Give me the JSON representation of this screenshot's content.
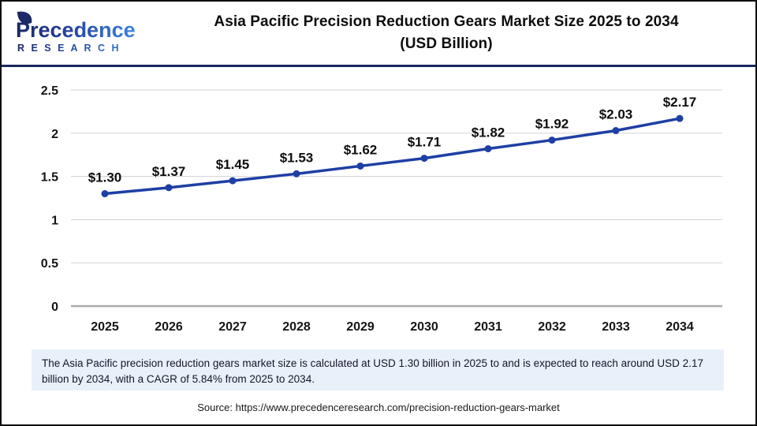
{
  "brand": {
    "name": "Precedence",
    "subname": "R E S E A R C H"
  },
  "header": {
    "title_line1": "Asia Pacific Precision Reduction Gears Market Size 2025 to 2034",
    "title_line2": "(USD Billion)"
  },
  "chart_data": {
    "type": "line",
    "title": "Asia Pacific Precision Reduction Gears Market Size 2025 to 2034 (USD Billion)",
    "categories": [
      "2025",
      "2026",
      "2027",
      "2028",
      "2029",
      "2030",
      "2031",
      "2032",
      "2033",
      "2034"
    ],
    "values": [
      1.3,
      1.37,
      1.45,
      1.53,
      1.62,
      1.71,
      1.82,
      1.92,
      2.03,
      2.17
    ],
    "point_labels": [
      "$1.30",
      "$1.37",
      "$1.45",
      "$1.53",
      "$1.62",
      "$1.71",
      "$1.82",
      "$1.92",
      "$2.03",
      "$2.17"
    ],
    "xlabel": "",
    "ylabel": "",
    "ylim": [
      0,
      2.5
    ],
    "yticks": [
      0,
      0.5,
      1,
      1.5,
      2,
      2.5
    ],
    "ytick_labels": [
      "0",
      "0.5",
      "1",
      "1.5",
      "2",
      "2.5"
    ],
    "grid": "horizontal",
    "legend": "none",
    "line_color": "#1E3FA4",
    "marker": "circle"
  },
  "note": {
    "text": "The Asia Pacific precision reduction gears market size is calculated at USD 1.30 billion in 2025 to and is expected to reach around USD 2.17 billion by 2034, with a CAGR of 5.84% from 2025 to 2034."
  },
  "source": {
    "text": "Source: https://www.precedenceresearch.com/precision-reduction-gears-market"
  },
  "colors": {
    "divider_navy": "#1A2A5E",
    "logo_dark": "#1B2766",
    "logo_light": "#3D85E0",
    "note_bg": "#E8F1FA",
    "grid": "#D9D9D9",
    "axis": "#ABABAB"
  }
}
